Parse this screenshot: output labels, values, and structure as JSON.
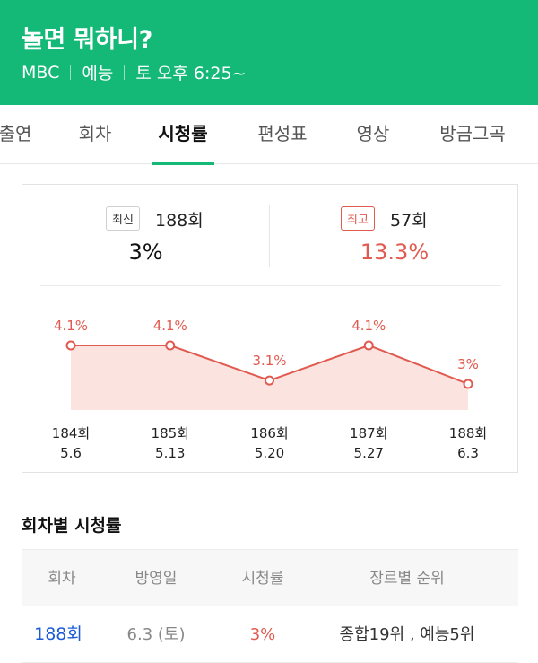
{
  "header": {
    "title": "놀면 뭐하니?",
    "channel": "MBC",
    "genre": "예능",
    "schedule": "토 오후 6:25~"
  },
  "tabs": [
    "출연",
    "회차",
    "시청률",
    "편성표",
    "영상",
    "방금그곡"
  ],
  "active_tab": "시청률",
  "summary": {
    "latest": {
      "badge": "최신",
      "episode": "188회",
      "rating": "3%"
    },
    "highest": {
      "badge": "최고",
      "episode": "57회",
      "rating": "13.3%"
    }
  },
  "chart_data": {
    "type": "area",
    "categories": [
      "184회",
      "185회",
      "186회",
      "187회",
      "188회"
    ],
    "dates": [
      "5.6",
      "5.13",
      "5.20",
      "5.27",
      "6.3"
    ],
    "data_labels": [
      "4.1%",
      "4.1%",
      "3.1%",
      "4.1%",
      "3%"
    ],
    "values": [
      4.1,
      4.1,
      3.1,
      4.1,
      3.0
    ],
    "ylim": [
      3.0,
      4.1
    ],
    "color": "#e05a4f",
    "fill": "#fbe3e0"
  },
  "table": {
    "title": "회차별 시청률",
    "headers": [
      "회차",
      "방영일",
      "시청률",
      "장르별 순위"
    ],
    "rows": [
      {
        "episode": "188회",
        "date": "6.3 (토)",
        "rating": "3%",
        "rank": "종합19위 , 예능5위"
      }
    ]
  },
  "colors": {
    "brand": "#14b877",
    "accent": "#e05a4f",
    "link": "#1c5bd6"
  }
}
